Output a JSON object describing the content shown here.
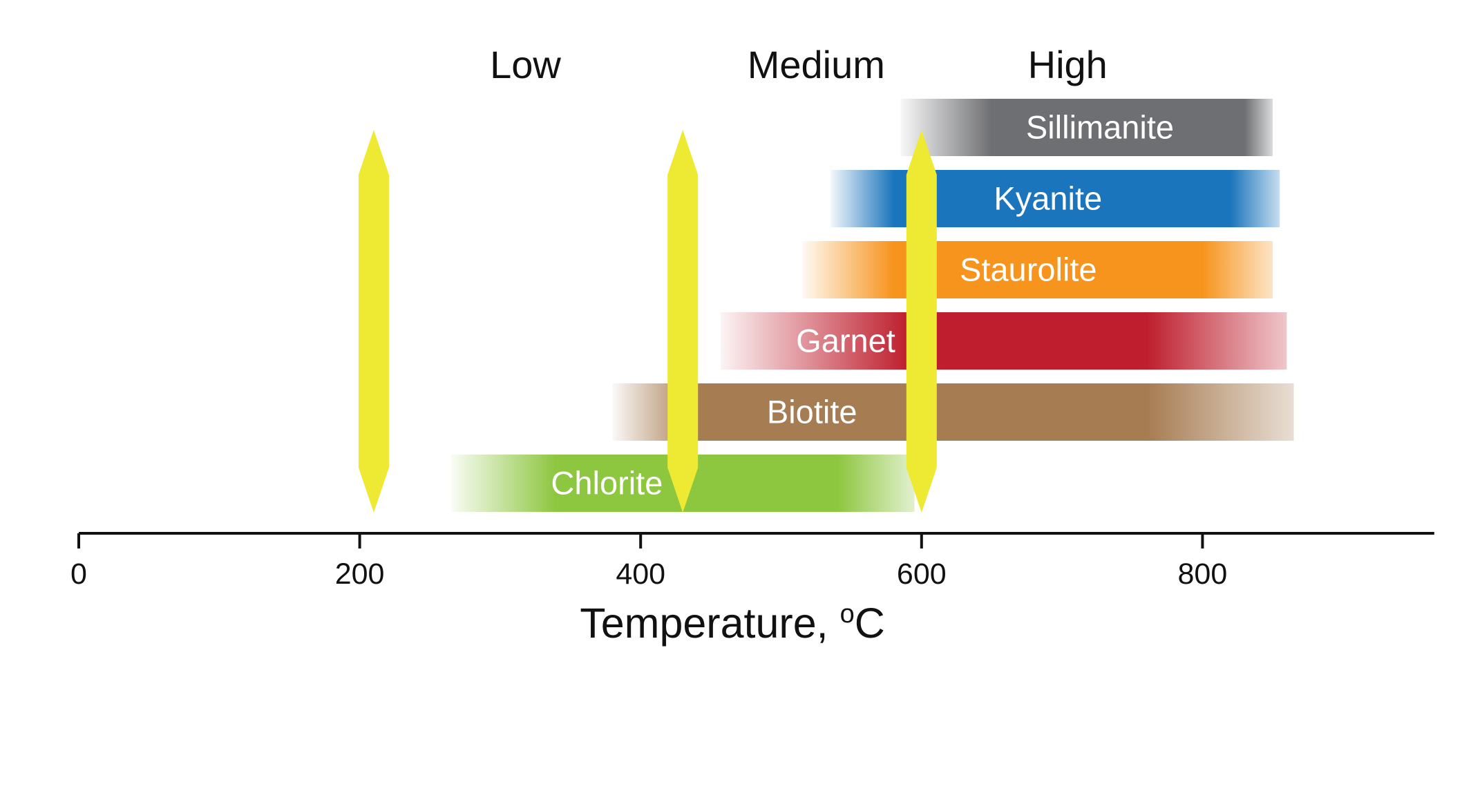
{
  "chart_data": {
    "type": "range-bar",
    "xlabel": "Temperature, ",
    "xlabel_superscript": "o",
    "xlabel_unit": "C",
    "xlim": [
      0,
      965
    ],
    "ticks": [
      0,
      200,
      400,
      600,
      800
    ],
    "tick_labels": [
      "0",
      "200",
      "400",
      "600",
      "800"
    ],
    "grade_labels": [
      {
        "label": "Low",
        "x": 318
      },
      {
        "label": "Medium",
        "x": 525
      },
      {
        "label": "High",
        "x": 704
      }
    ],
    "minerals": [
      {
        "name": "Sillimanite",
        "start": 585,
        "end": 850,
        "solid_start": 650,
        "solid_end": 830,
        "color": "#6e6f72",
        "label_x": 727
      },
      {
        "name": "Kyanite",
        "start": 535,
        "end": 855,
        "solid_start": 580,
        "solid_end": 820,
        "color": "#1b75bc",
        "label_x": 690
      },
      {
        "name": "Staurolite",
        "start": 515,
        "end": 850,
        "solid_start": 580,
        "solid_end": 800,
        "color": "#f7941d",
        "label_x": 676
      },
      {
        "name": "Garnet",
        "start": 457,
        "end": 860,
        "solid_start": 590,
        "solid_end": 760,
        "color": "#be1e2d",
        "label_x": 546
      },
      {
        "name": "Biotite",
        "start": 380,
        "end": 865,
        "solid_start": 440,
        "solid_end": 760,
        "color": "#a67c52",
        "label_x": 522
      },
      {
        "name": "Chlorite",
        "start": 265,
        "end": 595,
        "solid_start": 340,
        "solid_end": 540,
        "color": "#8dc63f",
        "label_x": 376
      }
    ],
    "grade_boundaries": [
      {
        "x": 210,
        "color": "#eeea33"
      },
      {
        "x": 430,
        "color": "#eeea33"
      },
      {
        "x": 600,
        "color": "#eeea33"
      }
    ]
  }
}
